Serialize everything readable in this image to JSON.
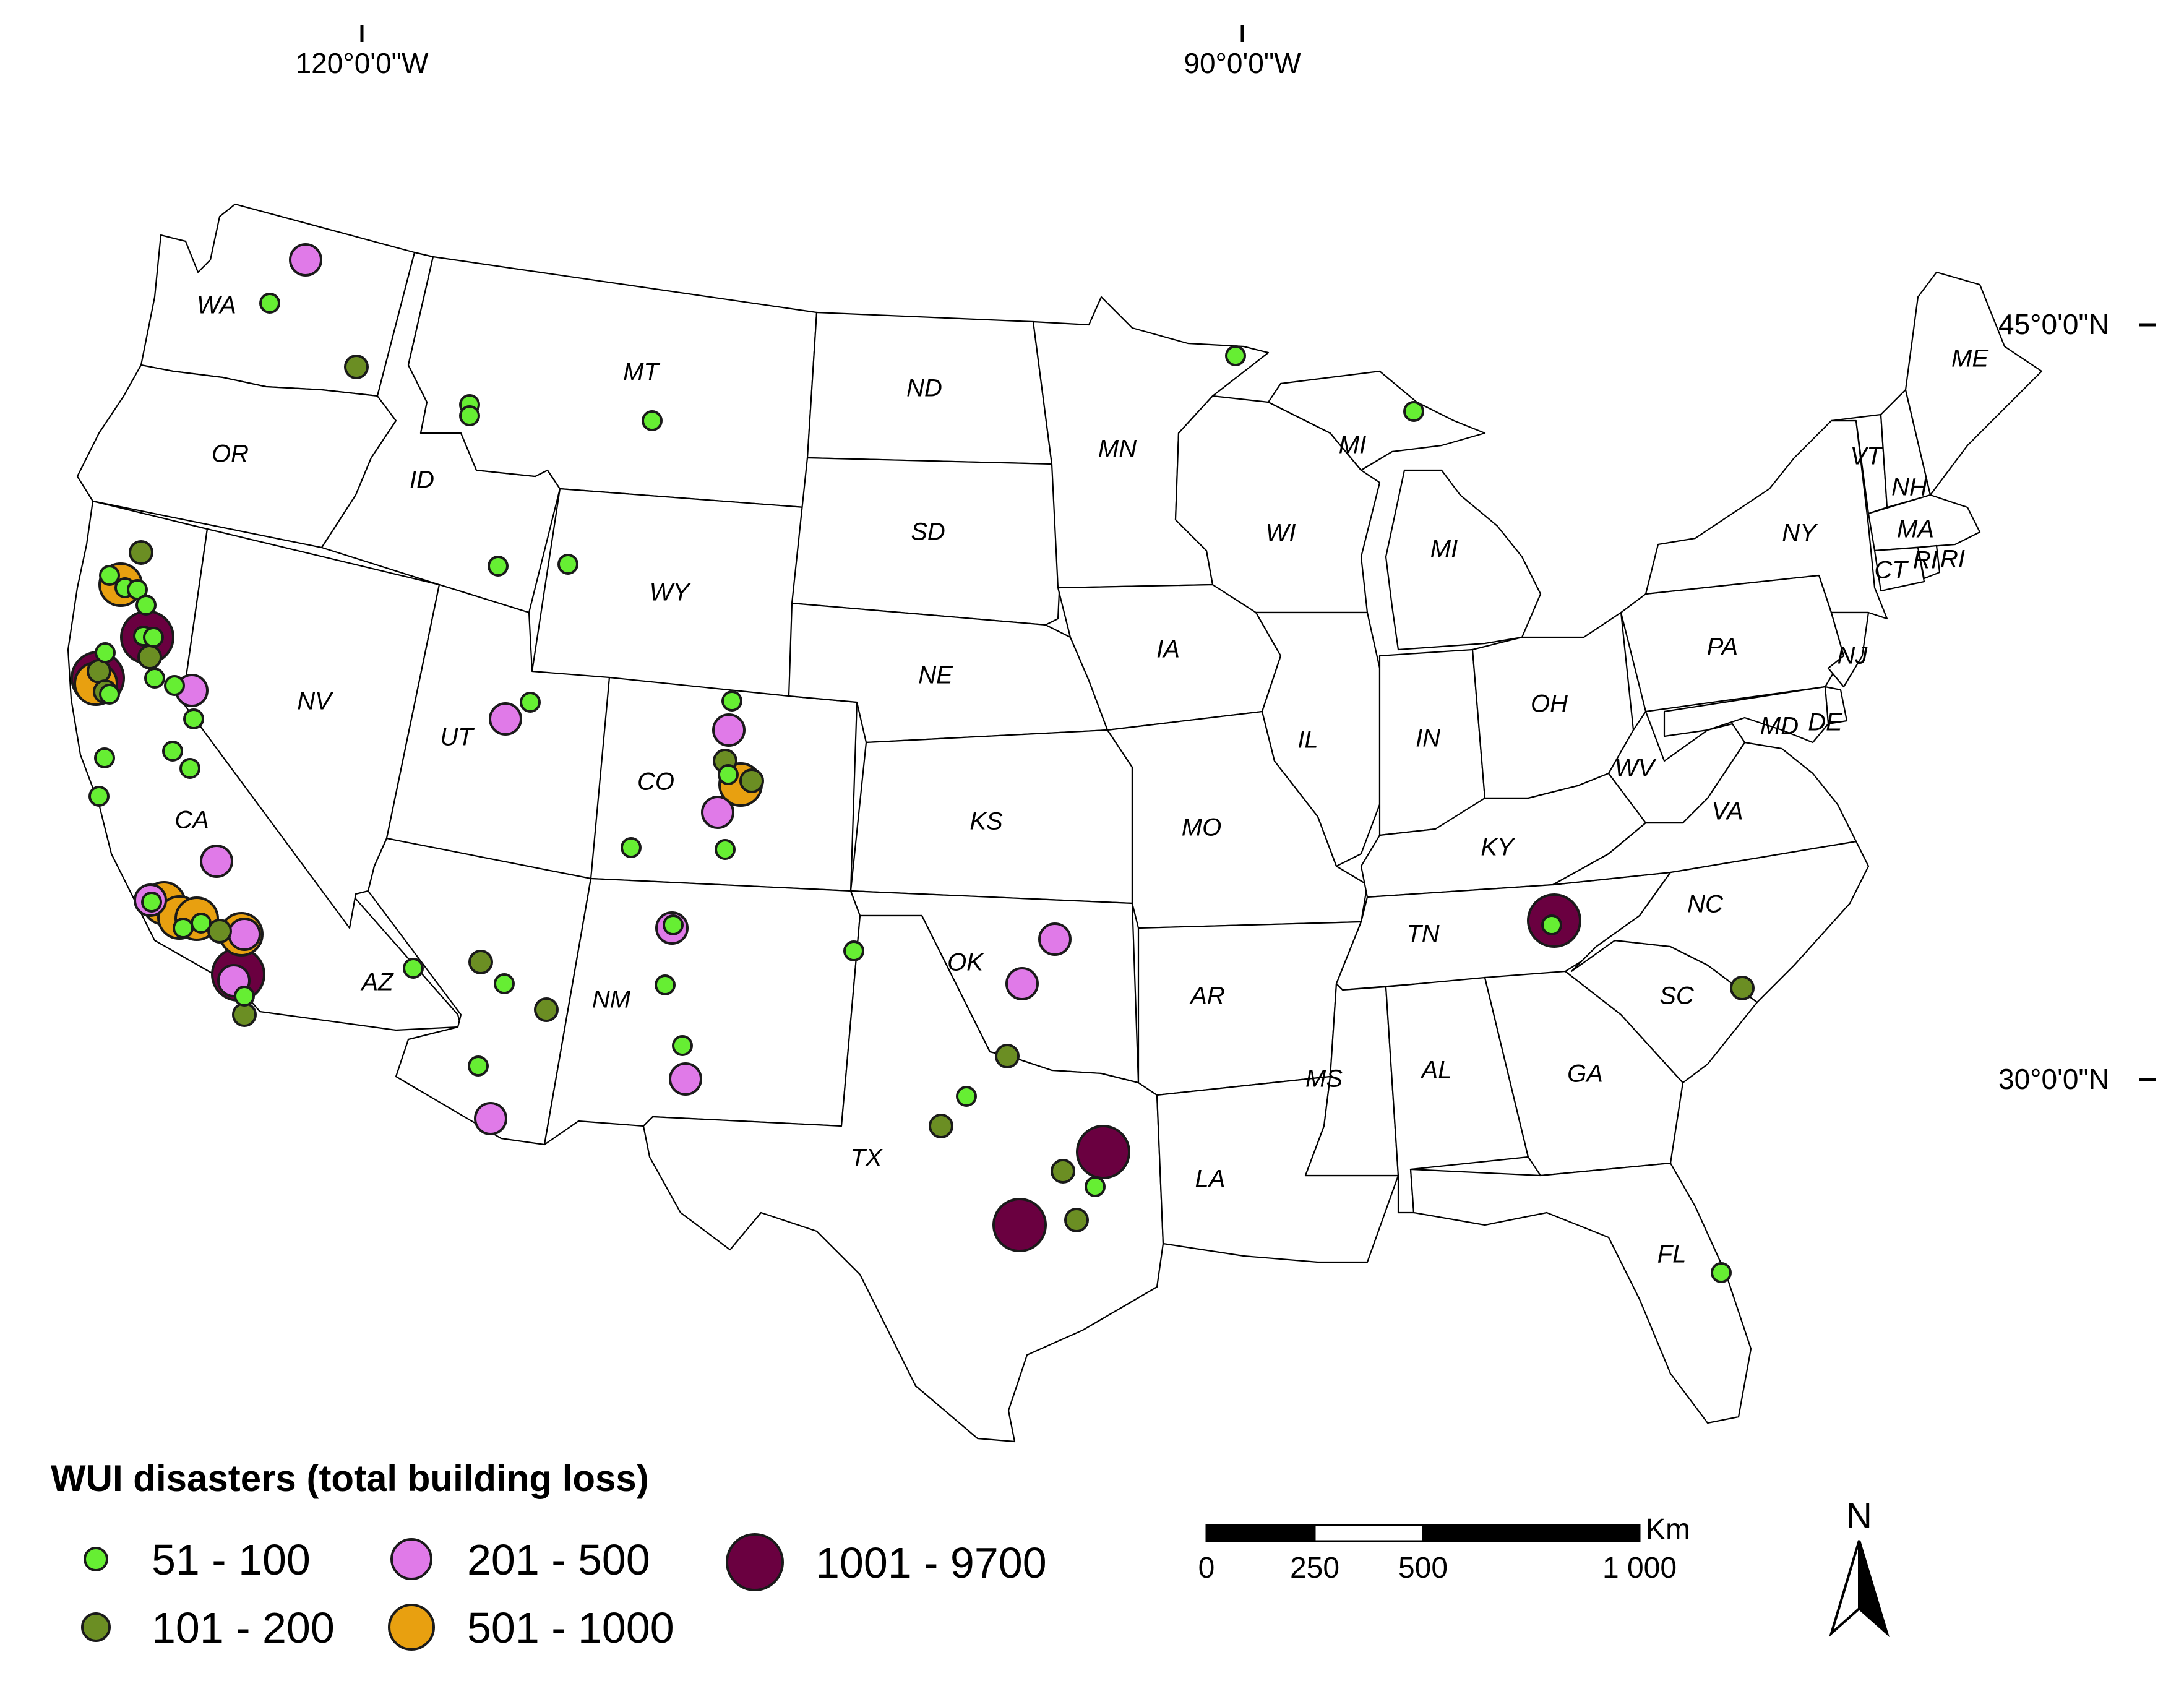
{
  "graticule": {
    "lon_labels": [
      "120°0'0\"W",
      "90°0'0\"W"
    ],
    "lat_labels": [
      "45°0'0\"N",
      "30°0'0\"N"
    ]
  },
  "states": [
    "WA",
    "OR",
    "CA",
    "ID",
    "NV",
    "MT",
    "WY",
    "UT",
    "AZ",
    "CO",
    "NM",
    "ND",
    "SD",
    "NE",
    "KS",
    "OK",
    "TX",
    "MN",
    "IA",
    "MO",
    "AR",
    "LA",
    "WI",
    "IL",
    "MI",
    "MI",
    "IN",
    "OH",
    "KY",
    "TN",
    "MS",
    "AL",
    "GA",
    "FL",
    "SC",
    "NC",
    "VA",
    "WV",
    "PA",
    "NY",
    "VT",
    "NH",
    "ME",
    "MA",
    "CT",
    "RI",
    "RI",
    "NJ",
    "MD",
    "DE"
  ],
  "legend": {
    "title": "WUI disasters (total building loss)",
    "classes": [
      {
        "label": "51 - 100",
        "color": "#66ee33"
      },
      {
        "label": "101 - 200",
        "color": "#6b8e23"
      },
      {
        "label": "201 - 500",
        "color": "#e07ae8"
      },
      {
        "label": "501 - 1000",
        "color": "#e8a010"
      },
      {
        "label": "1001 - 9700",
        "color": "#6a0040"
      }
    ]
  },
  "scale_bar": {
    "unit": "Km",
    "ticks": [
      "0",
      "250",
      "500",
      "1 000"
    ]
  },
  "north_arrow": {
    "label": "N"
  },
  "disasters": [
    {
      "class": 2,
      "state": "WA"
    },
    {
      "class": 0,
      "state": "WA"
    },
    {
      "class": 1,
      "state": "WA"
    },
    {
      "class": 0,
      "state": "ID"
    },
    {
      "class": 0,
      "state": "ID"
    },
    {
      "class": 0,
      "state": "MT"
    },
    {
      "class": 0,
      "state": "MN"
    },
    {
      "class": 0,
      "state": "MI"
    },
    {
      "class": 0,
      "state": "ID"
    },
    {
      "class": 0,
      "state": "WY"
    },
    {
      "class": 1,
      "state": "CA"
    },
    {
      "class": 3,
      "state": "CA"
    },
    {
      "class": 0,
      "state": "CA"
    },
    {
      "class": 0,
      "state": "CA"
    },
    {
      "class": 0,
      "state": "CA"
    },
    {
      "class": 0,
      "state": "CA"
    },
    {
      "class": 4,
      "state": "CA"
    },
    {
      "class": 0,
      "state": "CA"
    },
    {
      "class": 0,
      "state": "CA"
    },
    {
      "class": 1,
      "state": "CA"
    },
    {
      "class": 0,
      "state": "CA"
    },
    {
      "class": 4,
      "state": "CA"
    },
    {
      "class": 3,
      "state": "CA"
    },
    {
      "class": 1,
      "state": "CA"
    },
    {
      "class": 1,
      "state": "CA"
    },
    {
      "class": 0,
      "state": "CA"
    },
    {
      "class": 0,
      "state": "CA"
    },
    {
      "class": 2,
      "state": "CA"
    },
    {
      "class": 0,
      "state": "CA"
    },
    {
      "class": 0,
      "state": "CA"
    },
    {
      "class": 0,
      "state": "CA"
    },
    {
      "class": 0,
      "state": "CA"
    },
    {
      "class": 0,
      "state": "CA"
    },
    {
      "class": 0,
      "state": "CA"
    },
    {
      "class": 2,
      "state": "CA"
    },
    {
      "class": 3,
      "state": "CA"
    },
    {
      "class": 2,
      "state": "CA"
    },
    {
      "class": 0,
      "state": "CA"
    },
    {
      "class": 3,
      "state": "CA"
    },
    {
      "class": 3,
      "state": "CA"
    },
    {
      "class": 0,
      "state": "CA"
    },
    {
      "class": 0,
      "state": "CA"
    },
    {
      "class": 1,
      "state": "CA"
    },
    {
      "class": 3,
      "state": "CA"
    },
    {
      "class": 2,
      "state": "CA"
    },
    {
      "class": 0,
      "state": "CA"
    },
    {
      "class": 4,
      "state": "CA"
    },
    {
      "class": 2,
      "state": "CA"
    },
    {
      "class": 1,
      "state": "CA"
    },
    {
      "class": 2,
      "state": "CA"
    },
    {
      "class": 0,
      "state": "UT"
    },
    {
      "class": 0,
      "state": "UT"
    },
    {
      "class": 2,
      "state": "CO"
    },
    {
      "class": 1,
      "state": "CO"
    },
    {
      "class": 0,
      "state": "CO"
    },
    {
      "class": 1,
      "state": "CO"
    },
    {
      "class": 3,
      "state": "CO"
    },
    {
      "class": 2,
      "state": "CO"
    },
    {
      "class": 0,
      "state": "CO"
    },
    {
      "class": 0,
      "state": "CO"
    },
    {
      "class": 0,
      "state": "CO"
    },
    {
      "class": 1,
      "state": "AZ"
    },
    {
      "class": 0,
      "state": "AZ"
    },
    {
      "class": 1,
      "state": "AZ"
    },
    {
      "class": 0,
      "state": "AZ"
    },
    {
      "class": 2,
      "state": "AZ"
    },
    {
      "class": 0,
      "state": "AZ"
    },
    {
      "class": 2,
      "state": "NM"
    },
    {
      "class": 0,
      "state": "NM"
    },
    {
      "class": 0,
      "state": "NM"
    },
    {
      "class": 2,
      "state": "NM"
    },
    {
      "class": 0,
      "state": "NM"
    },
    {
      "class": 2,
      "state": "TX"
    },
    {
      "class": 2,
      "state": "OK"
    },
    {
      "class": 1,
      "state": "OK"
    },
    {
      "class": 0,
      "state": "TX"
    },
    {
      "class": 1,
      "state": "TX"
    },
    {
      "class": 1,
      "state": "TX"
    },
    {
      "class": 4,
      "state": "TX"
    },
    {
      "class": 4,
      "state": "TX"
    },
    {
      "class": 0,
      "state": "TX"
    },
    {
      "class": 1,
      "state": "TX"
    },
    {
      "class": 0,
      "state": "TX"
    },
    {
      "class": 4,
      "state": "TN"
    },
    {
      "class": 1,
      "state": "TN"
    },
    {
      "class": 0,
      "state": "NC"
    },
    {
      "class": 0,
      "state": "FL"
    }
  ]
}
